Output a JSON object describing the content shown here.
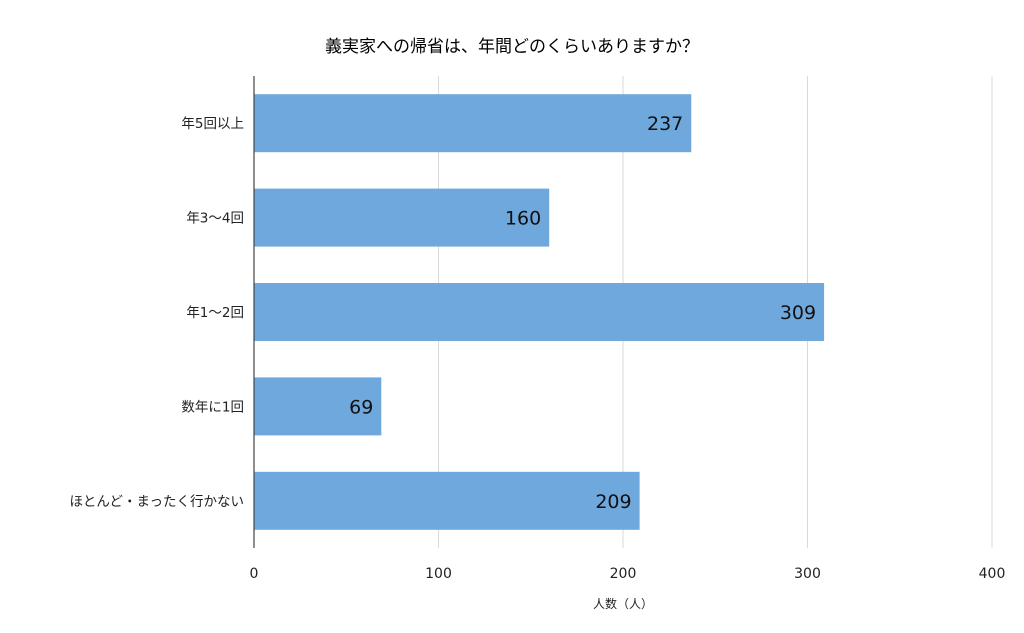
{
  "chart_data": {
    "type": "bar",
    "orientation": "horizontal",
    "title": "義実家への帰省は、年間どのくらいありますか？",
    "xlabel": "人数（人）",
    "ylabel": "",
    "categories": [
      "年5回以上",
      "年3〜4回",
      "年1〜2回",
      "数年に1回",
      "ほとんど・まったく行かない"
    ],
    "values": [
      237,
      160,
      309,
      69,
      209
    ],
    "data_labels": [
      "237",
      "160",
      "309",
      "69",
      "209"
    ],
    "xlim": [
      0,
      400
    ],
    "xticks": [
      0,
      100,
      200,
      300,
      400
    ],
    "xtick_labels": [
      "0",
      "100",
      "200",
      "300",
      "400"
    ],
    "bar_color": "#6fa8dc",
    "grid": "vertical",
    "legend": "none"
  }
}
